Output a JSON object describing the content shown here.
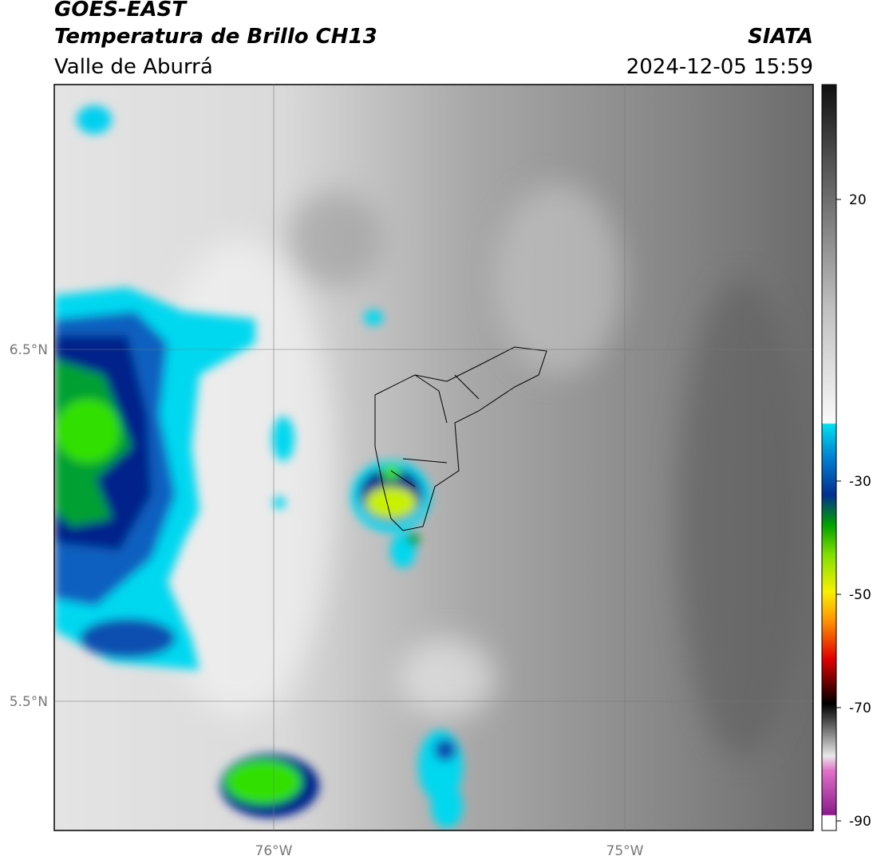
{
  "header": {
    "title": "GOES-EAST",
    "subtitle": "Temperatura de Brillo CH13",
    "region": "Valle de Aburrá",
    "source": "SIATA",
    "datetime": "2024-12-05 15:59"
  },
  "map": {
    "lat_labels": [
      "6.5°N",
      "5.5°N"
    ],
    "lon_labels": [
      "76°W",
      "75°W"
    ]
  },
  "colorbar": {
    "ticks": [
      20,
      -30,
      -50,
      -70,
      -90
    ]
  }
}
